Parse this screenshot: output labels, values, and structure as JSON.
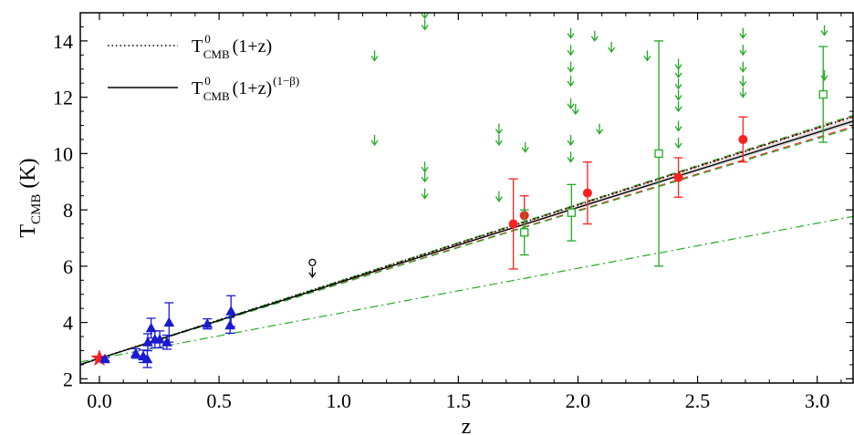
{
  "chart_data": {
    "type": "scatter",
    "xlabel": "z",
    "ylabel": "T",
    "ylabel_sub": "CMB",
    "ylabel_unit": "(K)",
    "xlim": [
      -0.08,
      3.15
    ],
    "ylim": [
      1.85,
      15.0
    ],
    "x_ticks": [
      0.0,
      0.5,
      1.0,
      1.5,
      2.0,
      2.5,
      3.0
    ],
    "x_tick_labels": [
      "0.0",
      "0.5",
      "1.0",
      "1.5",
      "2.0",
      "2.5",
      "3.0"
    ],
    "y_ticks": [
      2,
      4,
      6,
      8,
      10,
      12,
      14
    ],
    "y_tick_labels": [
      "2",
      "4",
      "6",
      "8",
      "10",
      "12",
      "14"
    ],
    "legend": [
      {
        "style": "dotted",
        "main": "T",
        "sup": "0",
        "sub": "CMB",
        "tail": "(1+z)",
        "tail_sup": ""
      },
      {
        "style": "solid",
        "main": "T",
        "sup": "0",
        "sub": "CMB",
        "tail": "(1+z)",
        "tail_sup": "(1−β)"
      }
    ],
    "models": {
      "T0": 2.725,
      "beta": 0.01,
      "band_beta": [
        0.004,
        0.016
      ],
      "red_dashed_beta": [
        0.0,
        0.022
      ],
      "green_dashed_beta": [
        -0.003,
        0.025
      ],
      "green_dashdot_slope": 1.6,
      "colors": {
        "band": "#c8c8c8",
        "red": "#ff3030",
        "green": "#22aa22"
      }
    },
    "series": [
      {
        "marker": "star",
        "color": "#ff2020",
        "points": [
          {
            "x": 0.0,
            "y": 2.725,
            "yerr": 0
          }
        ]
      },
      {
        "marker": "triangle",
        "color": "#1a1ad0",
        "points": [
          {
            "x": 0.023,
            "y": 2.7,
            "yerr": 0.05
          },
          {
            "x": 0.152,
            "y": 2.9,
            "yerr": 0.17
          },
          {
            "x": 0.183,
            "y": 2.8,
            "yerr": 0.22
          },
          {
            "x": 0.2,
            "y": 2.7,
            "yerr": 0.3
          },
          {
            "x": 0.202,
            "y": 3.3,
            "yerr": 0.3
          },
          {
            "x": 0.216,
            "y": 3.8,
            "yerr": 0.35
          },
          {
            "x": 0.232,
            "y": 3.4,
            "yerr": 0.3
          },
          {
            "x": 0.252,
            "y": 3.4,
            "yerr": 0.3
          },
          {
            "x": 0.282,
            "y": 3.3,
            "yerr": 0.25
          },
          {
            "x": 0.291,
            "y": 4.0,
            "yerr": 0.7
          },
          {
            "x": 0.451,
            "y": 3.95,
            "yerr": 0.18
          },
          {
            "x": 0.546,
            "y": 3.9,
            "yerr": 0.28
          },
          {
            "x": 0.55,
            "y": 4.4,
            "yerr": 0.55
          }
        ]
      },
      {
        "marker": "open-circle-upper-limit",
        "color": "#000000",
        "points": [
          {
            "x": 0.89,
            "y": 6.0,
            "yerr": 0
          }
        ]
      },
      {
        "marker": "filled-circle",
        "color": "#ff2020",
        "points": [
          {
            "x": 1.73,
            "y": 7.5,
            "yerr": 1.6
          },
          {
            "x": 1.776,
            "y": 7.8,
            "yerr": 0.7
          },
          {
            "x": 2.04,
            "y": 8.6,
            "yerr": 1.1
          },
          {
            "x": 2.42,
            "y": 9.15,
            "yerr": 0.7
          },
          {
            "x": 2.69,
            "y": 10.5,
            "yerr": 0.8
          }
        ]
      },
      {
        "marker": "open-square",
        "color": "#22aa22",
        "points": [
          {
            "x": 1.776,
            "y": 7.2,
            "yerr": 0.8
          },
          {
            "x": 1.973,
            "y": 7.9,
            "yerr": 1.0
          },
          {
            "x": 2.338,
            "y": 10.0,
            "yerr": 4.0
          },
          {
            "x": 3.025,
            "y": 12.1,
            "yerr": 1.7
          }
        ]
      },
      {
        "marker": "upper-limit-arrow",
        "color": "#22aa22",
        "points": [
          {
            "x": 1.15,
            "y": 13.5
          },
          {
            "x": 1.15,
            "y": 10.5
          },
          {
            "x": 1.36,
            "y": 15.0
          },
          {
            "x": 1.36,
            "y": 14.6
          },
          {
            "x": 1.36,
            "y": 9.55
          },
          {
            "x": 1.36,
            "y": 9.2
          },
          {
            "x": 1.36,
            "y": 8.6
          },
          {
            "x": 1.67,
            "y": 10.9
          },
          {
            "x": 1.67,
            "y": 10.5
          },
          {
            "x": 1.67,
            "y": 8.5
          },
          {
            "x": 1.78,
            "y": 10.25
          },
          {
            "x": 1.97,
            "y": 14.3
          },
          {
            "x": 1.97,
            "y": 13.7
          },
          {
            "x": 1.97,
            "y": 13.1
          },
          {
            "x": 1.97,
            "y": 12.6
          },
          {
            "x": 1.97,
            "y": 11.8
          },
          {
            "x": 1.97,
            "y": 10.5
          },
          {
            "x": 1.97,
            "y": 9.9
          },
          {
            "x": 1.99,
            "y": 11.6
          },
          {
            "x": 2.07,
            "y": 14.2
          },
          {
            "x": 2.09,
            "y": 10.9
          },
          {
            "x": 2.14,
            "y": 13.8
          },
          {
            "x": 2.29,
            "y": 13.5
          },
          {
            "x": 2.42,
            "y": 13.2
          },
          {
            "x": 2.42,
            "y": 12.9
          },
          {
            "x": 2.42,
            "y": 12.5
          },
          {
            "x": 2.42,
            "y": 12.1
          },
          {
            "x": 2.42,
            "y": 11.7
          },
          {
            "x": 2.42,
            "y": 11.0
          },
          {
            "x": 2.42,
            "y": 10.4
          },
          {
            "x": 2.69,
            "y": 14.3
          },
          {
            "x": 2.69,
            "y": 13.7
          },
          {
            "x": 2.69,
            "y": 13.1
          },
          {
            "x": 2.69,
            "y": 12.6
          },
          {
            "x": 2.69,
            "y": 12.2
          },
          {
            "x": 3.03,
            "y": 14.4
          },
          {
            "x": 3.03,
            "y": 12.8
          }
        ]
      }
    ]
  }
}
